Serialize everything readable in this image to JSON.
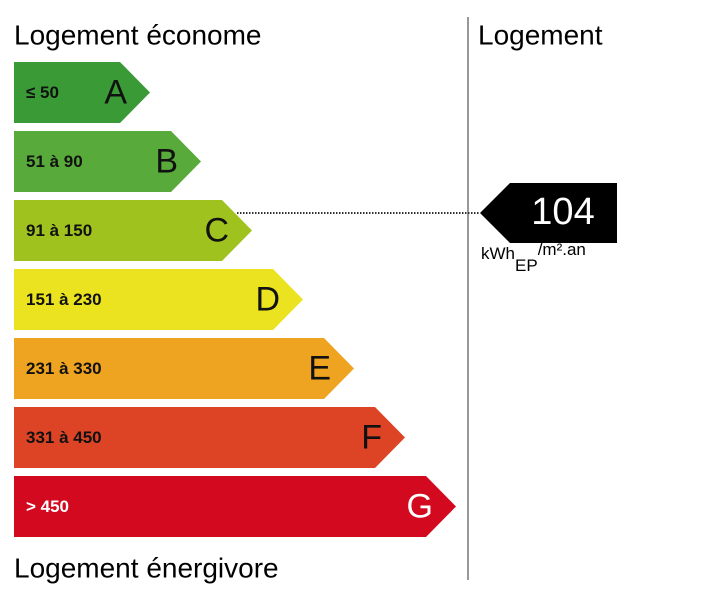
{
  "header": {
    "title": "Logement économe",
    "footer": "Logement énergivore",
    "column_title": "Logement"
  },
  "classes": [
    {
      "range": "≤ 50",
      "letter": "A",
      "color": "#3a9a35"
    },
    {
      "range": "51 à 90",
      "letter": "B",
      "color": "#58ab3a"
    },
    {
      "range": "91 à 150",
      "letter": "C",
      "color": "#9fc21f"
    },
    {
      "range": "151 à 230",
      "letter": "D",
      "color": "#ebe31f"
    },
    {
      "range": "231 à 330",
      "letter": "E",
      "color": "#eea321"
    },
    {
      "range": "331 à 450",
      "letter": "F",
      "color": "#dc4425"
    },
    {
      "range": "> 450",
      "letter": "G",
      "color": "#d3091f"
    }
  ],
  "indicator": {
    "value": 104,
    "unit": "kWh",
    "unit_sub": "EP",
    "unit_sup": "/m².an"
  }
}
